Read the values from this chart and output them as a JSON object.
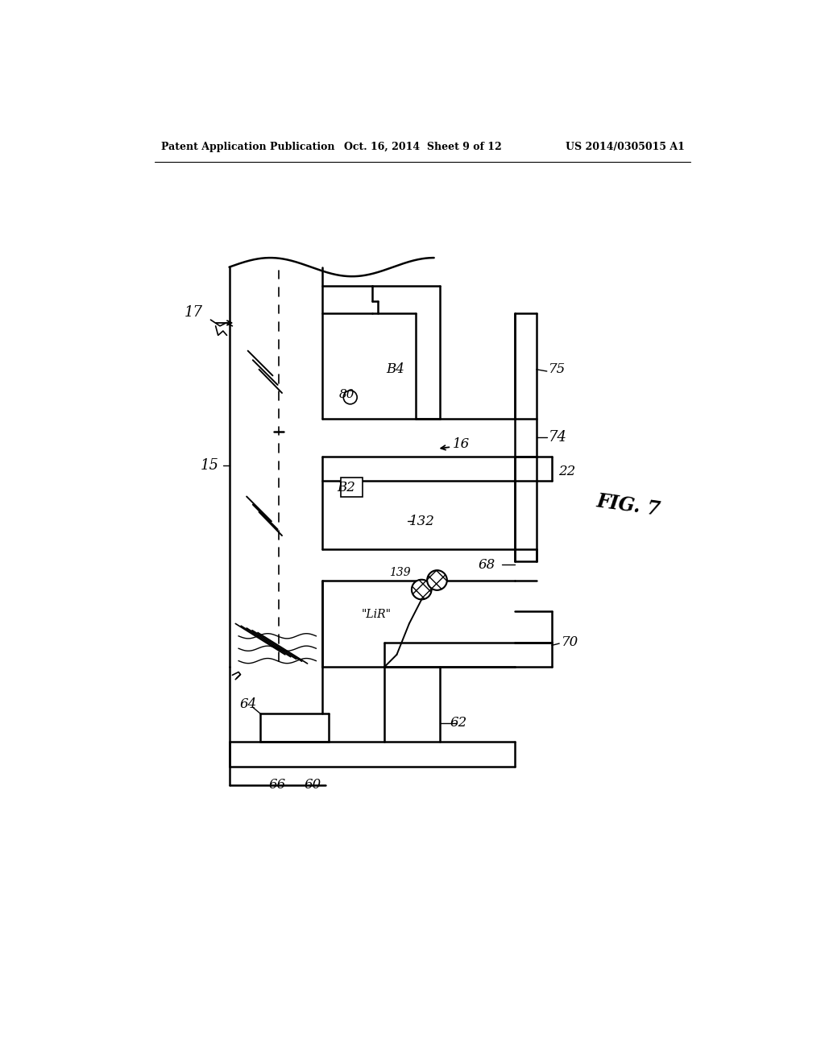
{
  "bg_color": "#ffffff",
  "header_left": "Patent Application Publication",
  "header_mid": "Oct. 16, 2014  Sheet 9 of 12",
  "header_right": "US 2014/0305015 A1",
  "fig_label": "FIG. 7"
}
